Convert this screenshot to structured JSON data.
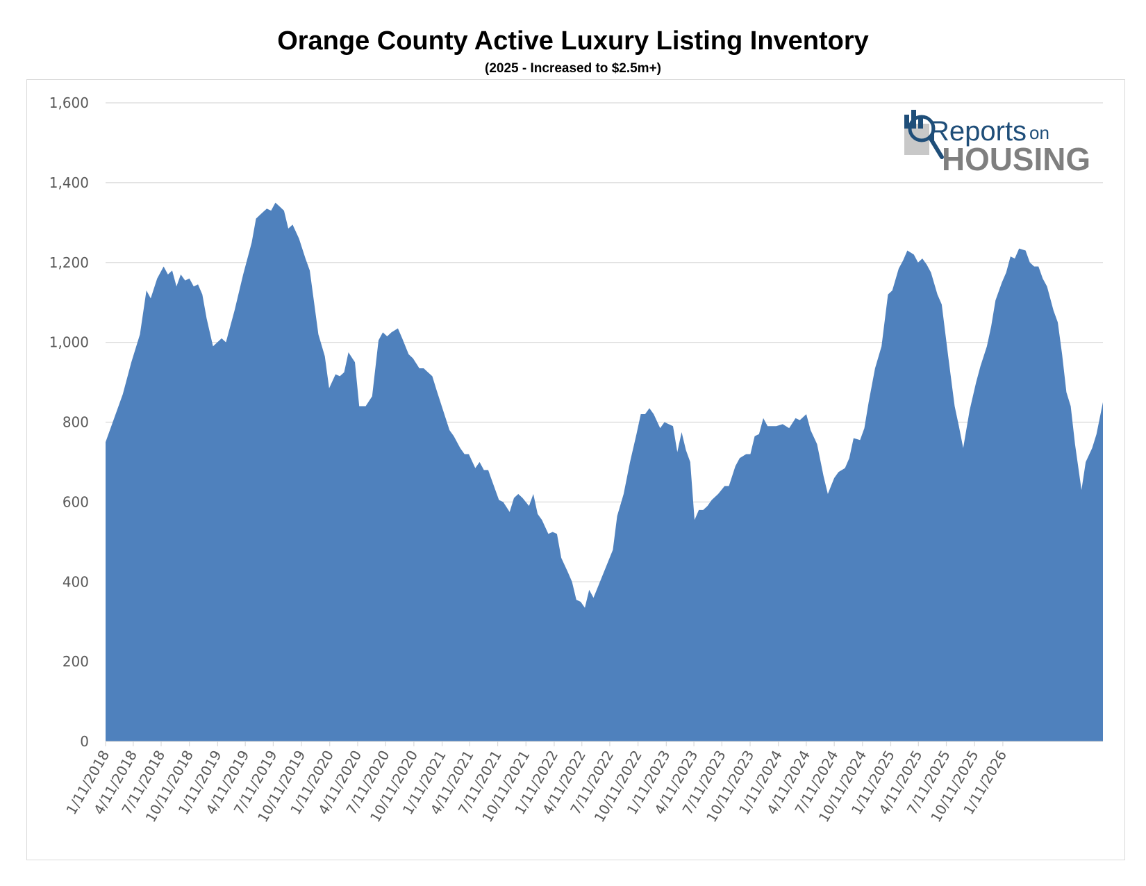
{
  "chart_data": {
    "type": "area",
    "title": "Orange County Active Luxury Listing Inventory",
    "subtitle": "(2025 - Increased to $2.5m+)",
    "xlabel": "",
    "ylabel": "",
    "ylim": [
      0,
      1600
    ],
    "yticks": [
      0,
      200,
      400,
      600,
      800,
      1000,
      1200,
      1400,
      1600
    ],
    "ytick_labels": [
      "0",
      "200",
      "400",
      "600",
      "800",
      "1,000",
      "1,200",
      "1,400",
      "1,600"
    ],
    "xticks": [
      "1/11/2018",
      "4/11/2018",
      "7/11/2018",
      "10/11/2018",
      "1/11/2019",
      "4/11/2019",
      "7/11/2019",
      "10/11/2019",
      "1/11/2020",
      "4/11/2020",
      "7/11/2020",
      "10/11/2020",
      "1/11/2021",
      "4/11/2021",
      "7/11/2021",
      "10/11/2021",
      "1/11/2022",
      "4/11/2022",
      "7/11/2022",
      "10/11/2022",
      "1/11/2023",
      "4/11/2023",
      "7/11/2023",
      "10/11/2023",
      "1/11/2024",
      "4/11/2024",
      "7/11/2024",
      "10/11/2024",
      "1/11/2025",
      "4/11/2025",
      "7/11/2025",
      "10/11/2025",
      "1/11/2026"
    ],
    "grid": true,
    "legend": "none",
    "color": "#4f81bd",
    "series": [
      {
        "points": [
          [
            "2018-01-11",
            750
          ],
          [
            "2018-02-08",
            810
          ],
          [
            "2018-03-08",
            870
          ],
          [
            "2018-04-05",
            950
          ],
          [
            "2018-05-03",
            1020
          ],
          [
            "2018-05-24",
            1130
          ],
          [
            "2018-06-07",
            1110
          ],
          [
            "2018-06-28",
            1160
          ],
          [
            "2018-07-19",
            1190
          ],
          [
            "2018-08-02",
            1170
          ],
          [
            "2018-08-16",
            1180
          ],
          [
            "2018-08-30",
            1140
          ],
          [
            "2018-09-13",
            1170
          ],
          [
            "2018-09-27",
            1155
          ],
          [
            "2018-10-11",
            1160
          ],
          [
            "2018-10-25",
            1140
          ],
          [
            "2018-11-08",
            1145
          ],
          [
            "2018-11-22",
            1120
          ],
          [
            "2018-12-06",
            1060
          ],
          [
            "2018-12-27",
            990
          ],
          [
            "2019-01-24",
            1010
          ],
          [
            "2019-02-07",
            1000
          ],
          [
            "2019-03-07",
            1080
          ],
          [
            "2019-04-04",
            1170
          ],
          [
            "2019-05-02",
            1250
          ],
          [
            "2019-05-16",
            1310
          ],
          [
            "2019-05-30",
            1320
          ],
          [
            "2019-06-20",
            1335
          ],
          [
            "2019-07-04",
            1330
          ],
          [
            "2019-07-18",
            1350
          ],
          [
            "2019-08-01",
            1340
          ],
          [
            "2019-08-15",
            1330
          ],
          [
            "2019-08-29",
            1285
          ],
          [
            "2019-09-12",
            1295
          ],
          [
            "2019-10-03",
            1260
          ],
          [
            "2019-10-24",
            1210
          ],
          [
            "2019-11-07",
            1180
          ],
          [
            "2019-12-05",
            1020
          ],
          [
            "2019-12-26",
            965
          ],
          [
            "2020-01-09",
            885
          ],
          [
            "2020-01-30",
            920
          ],
          [
            "2020-02-13",
            915
          ],
          [
            "2020-02-27",
            925
          ],
          [
            "2020-03-12",
            975
          ],
          [
            "2020-04-02",
            950
          ],
          [
            "2020-04-16",
            840
          ],
          [
            "2020-05-07",
            840
          ],
          [
            "2020-05-28",
            865
          ],
          [
            "2020-06-18",
            1005
          ],
          [
            "2020-07-02",
            1025
          ],
          [
            "2020-07-16",
            1015
          ],
          [
            "2020-07-30",
            1025
          ],
          [
            "2020-08-20",
            1035
          ],
          [
            "2020-09-03",
            1010
          ],
          [
            "2020-09-24",
            970
          ],
          [
            "2020-10-08",
            960
          ],
          [
            "2020-10-29",
            935
          ],
          [
            "2020-11-12",
            935
          ],
          [
            "2020-11-26",
            925
          ],
          [
            "2020-12-10",
            915
          ],
          [
            "2020-12-24",
            880
          ],
          [
            "2021-01-14",
            830
          ],
          [
            "2021-02-04",
            780
          ],
          [
            "2021-02-18",
            765
          ],
          [
            "2021-03-11",
            735
          ],
          [
            "2021-03-25",
            720
          ],
          [
            "2021-04-08",
            720
          ],
          [
            "2021-04-29",
            685
          ],
          [
            "2021-05-13",
            700
          ],
          [
            "2021-05-27",
            680
          ],
          [
            "2021-06-10",
            680
          ],
          [
            "2021-06-24",
            650
          ],
          [
            "2021-07-15",
            605
          ],
          [
            "2021-07-29",
            600
          ],
          [
            "2021-08-19",
            575
          ],
          [
            "2021-09-02",
            610
          ],
          [
            "2021-09-16",
            620
          ],
          [
            "2021-09-30",
            610
          ],
          [
            "2021-10-21",
            590
          ],
          [
            "2021-11-04",
            620
          ],
          [
            "2021-11-18",
            570
          ],
          [
            "2021-12-02",
            555
          ],
          [
            "2021-12-23",
            520
          ],
          [
            "2022-01-06",
            525
          ],
          [
            "2022-01-20",
            520
          ],
          [
            "2022-02-03",
            460
          ],
          [
            "2022-02-24",
            425
          ],
          [
            "2022-03-10",
            400
          ],
          [
            "2022-03-24",
            355
          ],
          [
            "2022-04-07",
            350
          ],
          [
            "2022-04-21",
            335
          ],
          [
            "2022-05-05",
            380
          ],
          [
            "2022-05-19",
            360
          ],
          [
            "2022-06-09",
            400
          ],
          [
            "2022-06-30",
            440
          ],
          [
            "2022-07-21",
            480
          ],
          [
            "2022-08-04",
            565
          ],
          [
            "2022-08-25",
            620
          ],
          [
            "2022-09-15",
            700
          ],
          [
            "2022-10-06",
            770
          ],
          [
            "2022-10-20",
            820
          ],
          [
            "2022-11-03",
            820
          ],
          [
            "2022-11-17",
            835
          ],
          [
            "2022-12-01",
            820
          ],
          [
            "2022-12-22",
            785
          ],
          [
            "2023-01-05",
            800
          ],
          [
            "2023-01-19",
            795
          ],
          [
            "2023-02-02",
            790
          ],
          [
            "2023-02-16",
            725
          ],
          [
            "2023-03-02",
            775
          ],
          [
            "2023-03-16",
            730
          ],
          [
            "2023-03-30",
            700
          ],
          [
            "2023-04-13",
            555
          ],
          [
            "2023-04-27",
            580
          ],
          [
            "2023-05-11",
            580
          ],
          [
            "2023-05-25",
            590
          ],
          [
            "2023-06-08",
            605
          ],
          [
            "2023-06-29",
            620
          ],
          [
            "2023-07-20",
            640
          ],
          [
            "2023-08-03",
            640
          ],
          [
            "2023-08-24",
            690
          ],
          [
            "2023-09-07",
            710
          ],
          [
            "2023-09-28",
            720
          ],
          [
            "2023-10-12",
            720
          ],
          [
            "2023-10-26",
            765
          ],
          [
            "2023-11-09",
            770
          ],
          [
            "2023-11-23",
            810
          ],
          [
            "2023-12-07",
            790
          ],
          [
            "2023-12-21",
            790
          ],
          [
            "2024-01-04",
            790
          ],
          [
            "2024-01-25",
            795
          ],
          [
            "2024-02-15",
            785
          ],
          [
            "2024-03-07",
            810
          ],
          [
            "2024-03-21",
            805
          ],
          [
            "2024-04-11",
            820
          ],
          [
            "2024-04-25",
            780
          ],
          [
            "2024-05-16",
            745
          ],
          [
            "2024-06-06",
            665
          ],
          [
            "2024-06-20",
            620
          ],
          [
            "2024-07-11",
            660
          ],
          [
            "2024-07-25",
            675
          ],
          [
            "2024-08-15",
            685
          ],
          [
            "2024-08-29",
            710
          ],
          [
            "2024-09-12",
            760
          ],
          [
            "2024-10-03",
            755
          ],
          [
            "2024-10-17",
            785
          ],
          [
            "2024-10-31",
            850
          ],
          [
            "2024-11-21",
            935
          ],
          [
            "2024-12-12",
            990
          ],
          [
            "2025-01-02",
            1120
          ],
          [
            "2025-01-16",
            1130
          ],
          [
            "2025-02-06",
            1185
          ],
          [
            "2025-02-20",
            1205
          ],
          [
            "2025-03-06",
            1230
          ],
          [
            "2025-03-27",
            1220
          ],
          [
            "2025-04-10",
            1200
          ],
          [
            "2025-04-24",
            1210
          ],
          [
            "2025-05-08",
            1195
          ],
          [
            "2025-05-22",
            1175
          ],
          [
            "2025-06-12",
            1120
          ],
          [
            "2025-06-26",
            1095
          ],
          [
            "2025-07-17",
            965
          ],
          [
            "2025-08-07",
            840
          ],
          [
            "2025-08-21",
            790
          ],
          [
            "2025-09-04",
            735
          ],
          [
            "2025-09-25",
            830
          ],
          [
            "2025-10-16",
            900
          ],
          [
            "2025-10-30",
            940
          ],
          [
            "2025-11-20",
            990
          ],
          [
            "2025-12-04",
            1040
          ],
          [
            "2025-12-18",
            1105
          ],
          [
            "2026-01-08",
            1150
          ],
          [
            "2026-01-22",
            1175
          ],
          [
            "2026-02-05",
            1215
          ],
          [
            "2026-02-19",
            1210
          ],
          [
            "2026-03-05",
            1235
          ],
          [
            "2026-03-26",
            1230
          ],
          [
            "2026-04-09",
            1200
          ],
          [
            "2026-04-23",
            1190
          ],
          [
            "2026-05-07",
            1190
          ],
          [
            "2026-05-21",
            1160
          ],
          [
            "2026-06-04",
            1140
          ],
          [
            "2026-06-25",
            1080
          ],
          [
            "2026-07-09",
            1050
          ],
          [
            "2026-07-23",
            970
          ],
          [
            "2026-08-06",
            875
          ],
          [
            "2026-08-20",
            840
          ],
          [
            "2026-09-03",
            745
          ],
          [
            "2026-09-24",
            630
          ],
          [
            "2026-10-08",
            700
          ],
          [
            "2026-10-29",
            735
          ],
          [
            "2026-11-12",
            770
          ],
          [
            "2026-12-03",
            850
          ]
        ]
      }
    ]
  },
  "logo": {
    "text_primary": "Reports",
    "text_secondary": "on",
    "text_tertiary": "HOUSING"
  }
}
